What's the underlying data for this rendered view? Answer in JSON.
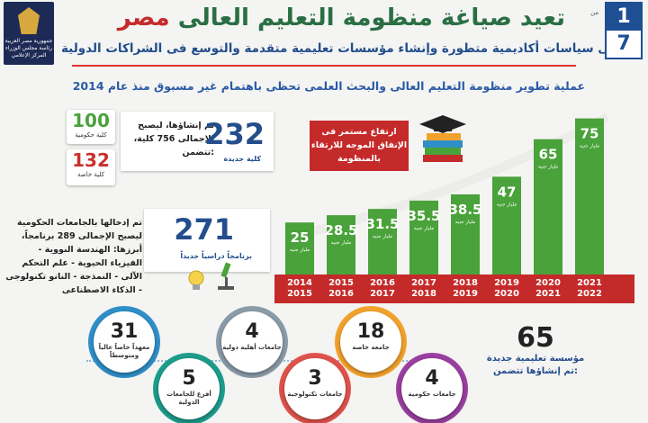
{
  "header": {
    "logo_text": "جمهورية مصر العربية رئاسة مجلس الوزراء المركز الإعلامي",
    "title_part1": "مصر",
    "title_part2": "تعيد صياغة منظومة التعليم العالى",
    "subtitle": "تبنى سياسات أكاديمية متطورة وإنشاء مؤسسات تعليمية متقدمة والتوسع فى الشراكات الدولية",
    "page_current": "1",
    "page_total": "7",
    "page_of": "من"
  },
  "headline": "عملية تطوير منظومة التعليم العالى والبحث العلمى تحظى باهتمام غير مسبوق منذ عام 2014",
  "left": {
    "gov_count": "100",
    "gov_label": "كلية حكومية",
    "private_count": "132",
    "private_label": "كلية خاصة",
    "colleges_count": "232",
    "colleges_caption": "كلية جديدة",
    "colleges_text": "تم إنشاؤها، ليصبح الإجمالى 756 كلية، تتضمن:",
    "programs_count": "271",
    "programs_caption": "برنامجاً دراسياً جديداً",
    "programs_text": "تم إدخالها بالجامعات الحكومية ليصبح الإجمالى 289 برنامجاً، أبرزها: الهندسة النووية - الفيزياء الحيوية - علم التحكم الآلى - النمذجة - النانو تكنولوجى - الذكاء الاصطناعى"
  },
  "callout": "ارتفاع مستمر فى الإنفاق الموجه للارتقاء بالمنظومة",
  "chart_data": {
    "type": "bar",
    "categories": [
      "2014 2015",
      "2015 2016",
      "2016 2017",
      "2017 2018",
      "2018 2019",
      "2019 2020",
      "2020 2021",
      "2021 2022"
    ],
    "values": [
      25,
      28.5,
      31.5,
      35.5,
      38.5,
      47,
      65,
      75
    ],
    "value_labels": [
      "25",
      "28.5",
      "31.5",
      "35.5",
      "38.5",
      "47",
      "65",
      "75"
    ],
    "unit_label": "مليار جنيه",
    "ylim": [
      0,
      80
    ],
    "bar_color": "#4aa23a",
    "axis_band_color": "#c52a2a"
  },
  "bottom": {
    "total_count": "65",
    "total_label": "مؤسسة تعليمية جديدة تم إنشاؤها تتضمن:",
    "items": [
      {
        "count": "31",
        "label": "معهداً خاصاً عالياً ومتوسطاً",
        "color": "#2f8fc8"
      },
      {
        "count": "5",
        "label": "أفرع للجامعات الدولية",
        "color": "#1d9c8c"
      },
      {
        "count": "4",
        "label": "جامعات أهلية دولية",
        "color": "#8a9ba8"
      },
      {
        "count": "3",
        "label": "جامعات تكنولوجية",
        "color": "#e0524c"
      },
      {
        "count": "18",
        "label": "جامعة خاصة",
        "color": "#f2a22c"
      },
      {
        "count": "4",
        "label": "جامعات حكومية",
        "color": "#9a3fa0"
      }
    ]
  }
}
